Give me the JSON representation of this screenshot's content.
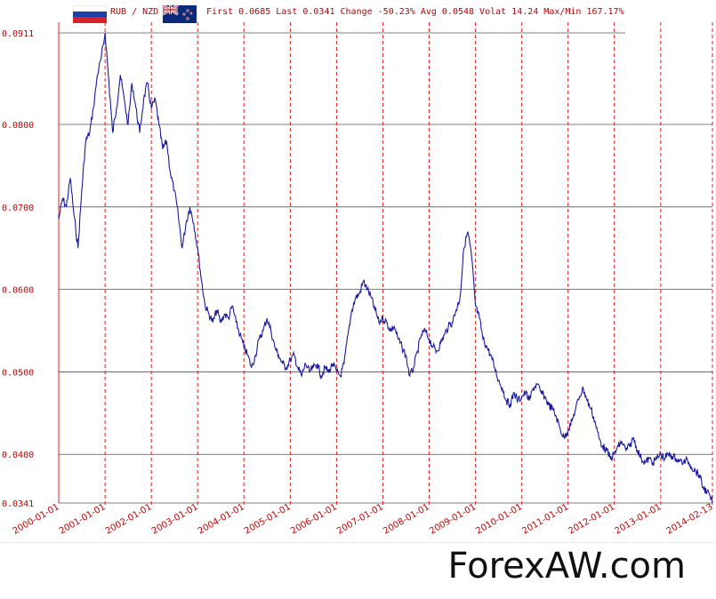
{
  "header": {
    "pair": "RUB / NZD",
    "stats": "First 0.0685 Last 0.0341 Change -50.23% Avg 0.0548 Volat 14.24 Max/Min 167.17%"
  },
  "flags": {
    "left": "russia-flag",
    "right": "new-zealand-flag"
  },
  "watermark": "ForexAW.com",
  "colors": {
    "line": "#1a1aa0",
    "grid_dashed": "#e02020",
    "grid_solid": "#555555",
    "axis_text": "#c00000"
  },
  "chart_data": {
    "type": "line",
    "title": "RUB / NZD",
    "ylim": [
      0.0341,
      0.0911
    ],
    "y_ticks": [
      "0.0911",
      "0.0800",
      "0.0700",
      "0.0600",
      "0.0500",
      "0.0400",
      "0.0341"
    ],
    "x_ticks": [
      "2000-01-01",
      "2001-01-01",
      "2002-01-01",
      "2003-01-01",
      "2004-01-01",
      "2005-01-01",
      "2006-01-01",
      "2007-01-01",
      "2008-01-01",
      "2009-01-01",
      "2010-01-01",
      "2011-01-01",
      "2012-01-01",
      "2013-01-01",
      "2014-02-13"
    ],
    "series": [
      {
        "values": [
          [
            "2000-01-01",
            0.0685
          ],
          [
            "2000-02-01",
            0.071
          ],
          [
            "2000-03-01",
            0.07
          ],
          [
            "2000-04-01",
            0.0735
          ],
          [
            "2000-05-01",
            0.069
          ],
          [
            "2000-06-01",
            0.065
          ],
          [
            "2000-07-01",
            0.072
          ],
          [
            "2000-08-01",
            0.078
          ],
          [
            "2000-09-01",
            0.079
          ],
          [
            "2000-10-01",
            0.082
          ],
          [
            "2000-11-01",
            0.086
          ],
          [
            "2000-12-01",
            0.088
          ],
          [
            "2001-01-01",
            0.0911
          ],
          [
            "2001-02-01",
            0.085
          ],
          [
            "2001-03-01",
            0.079
          ],
          [
            "2001-04-01",
            0.082
          ],
          [
            "2001-05-01",
            0.086
          ],
          [
            "2001-06-01",
            0.083
          ],
          [
            "2001-07-01",
            0.08
          ],
          [
            "2001-08-01",
            0.085
          ],
          [
            "2001-09-01",
            0.082
          ],
          [
            "2001-10-01",
            0.079
          ],
          [
            "2001-11-01",
            0.083
          ],
          [
            "2001-12-01",
            0.085
          ],
          [
            "2002-01-01",
            0.082
          ],
          [
            "2002-02-01",
            0.083
          ],
          [
            "2002-03-01",
            0.08
          ],
          [
            "2002-04-01",
            0.077
          ],
          [
            "2002-05-01",
            0.078
          ],
          [
            "2002-06-01",
            0.074
          ],
          [
            "2002-07-01",
            0.072
          ],
          [
            "2002-08-01",
            0.069
          ],
          [
            "2002-09-01",
            0.065
          ],
          [
            "2002-10-01",
            0.068
          ],
          [
            "2002-11-01",
            0.07
          ],
          [
            "2002-12-01",
            0.068
          ],
          [
            "2003-01-01",
            0.065
          ],
          [
            "2003-02-01",
            0.061
          ],
          [
            "2003-03-01",
            0.058
          ],
          [
            "2003-04-01",
            0.057
          ],
          [
            "2003-05-01",
            0.056
          ],
          [
            "2003-06-01",
            0.0575
          ],
          [
            "2003-07-01",
            0.056
          ],
          [
            "2003-08-01",
            0.057
          ],
          [
            "2003-09-01",
            0.0565
          ],
          [
            "2003-10-01",
            0.058
          ],
          [
            "2003-11-01",
            0.056
          ],
          [
            "2003-12-01",
            0.0545
          ],
          [
            "2004-01-01",
            0.053
          ],
          [
            "2004-02-01",
            0.052
          ],
          [
            "2004-03-01",
            0.0505
          ],
          [
            "2004-04-01",
            0.052
          ],
          [
            "2004-05-01",
            0.054
          ],
          [
            "2004-06-01",
            0.055
          ],
          [
            "2004-07-01",
            0.0565
          ],
          [
            "2004-08-01",
            0.055
          ],
          [
            "2004-09-01",
            0.053
          ],
          [
            "2004-10-01",
            0.052
          ],
          [
            "2004-11-01",
            0.051
          ],
          [
            "2004-12-01",
            0.0505
          ],
          [
            "2005-01-01",
            0.0515
          ],
          [
            "2005-02-01",
            0.052
          ],
          [
            "2005-03-01",
            0.0505
          ],
          [
            "2005-04-01",
            0.0495
          ],
          [
            "2005-05-01",
            0.051
          ],
          [
            "2005-06-01",
            0.05
          ],
          [
            "2005-07-01",
            0.0505
          ],
          [
            "2005-08-01",
            0.051
          ],
          [
            "2005-09-01",
            0.0495
          ],
          [
            "2005-10-01",
            0.0505
          ],
          [
            "2005-11-01",
            0.05
          ],
          [
            "2005-12-01",
            0.051
          ],
          [
            "2006-01-01",
            0.05
          ],
          [
            "2006-02-01",
            0.0495
          ],
          [
            "2006-03-01",
            0.051
          ],
          [
            "2006-04-01",
            0.0545
          ],
          [
            "2006-05-01",
            0.0575
          ],
          [
            "2006-06-01",
            0.059
          ],
          [
            "2006-07-01",
            0.0595
          ],
          [
            "2006-08-01",
            0.061
          ],
          [
            "2006-09-01",
            0.06
          ],
          [
            "2006-10-01",
            0.059
          ],
          [
            "2006-11-01",
            0.0575
          ],
          [
            "2006-12-01",
            0.056
          ],
          [
            "2007-01-01",
            0.0565
          ],
          [
            "2007-02-01",
            0.056
          ],
          [
            "2007-03-01",
            0.055
          ],
          [
            "2007-04-01",
            0.0555
          ],
          [
            "2007-05-01",
            0.054
          ],
          [
            "2007-06-01",
            0.053
          ],
          [
            "2007-07-01",
            0.052
          ],
          [
            "2007-08-01",
            0.0495
          ],
          [
            "2007-09-01",
            0.0505
          ],
          [
            "2007-10-01",
            0.0525
          ],
          [
            "2007-11-01",
            0.0545
          ],
          [
            "2007-12-01",
            0.055
          ],
          [
            "2008-01-01",
            0.054
          ],
          [
            "2008-02-01",
            0.053
          ],
          [
            "2008-03-01",
            0.0525
          ],
          [
            "2008-04-01",
            0.0535
          ],
          [
            "2008-05-01",
            0.0545
          ],
          [
            "2008-06-01",
            0.0555
          ],
          [
            "2008-07-01",
            0.056
          ],
          [
            "2008-08-01",
            0.0575
          ],
          [
            "2008-09-01",
            0.059
          ],
          [
            "2008-10-01",
            0.065
          ],
          [
            "2008-11-01",
            0.067
          ],
          [
            "2008-12-01",
            0.064
          ],
          [
            "2009-01-01",
            0.058
          ],
          [
            "2009-02-01",
            0.0565
          ],
          [
            "2009-03-01",
            0.054
          ],
          [
            "2009-04-01",
            0.053
          ],
          [
            "2009-05-01",
            0.052
          ],
          [
            "2009-06-01",
            0.0505
          ],
          [
            "2009-07-01",
            0.049
          ],
          [
            "2009-08-01",
            0.048
          ],
          [
            "2009-09-01",
            0.0465
          ],
          [
            "2009-10-01",
            0.046
          ],
          [
            "2009-11-01",
            0.0475
          ],
          [
            "2009-12-01",
            0.0465
          ],
          [
            "2010-01-01",
            0.047
          ],
          [
            "2010-02-01",
            0.0475
          ],
          [
            "2010-03-01",
            0.0465
          ],
          [
            "2010-04-01",
            0.048
          ],
          [
            "2010-05-01",
            0.0485
          ],
          [
            "2010-06-01",
            0.0475
          ],
          [
            "2010-07-01",
            0.047
          ],
          [
            "2010-08-01",
            0.046
          ],
          [
            "2010-09-01",
            0.0455
          ],
          [
            "2010-10-01",
            0.0445
          ],
          [
            "2010-11-01",
            0.043
          ],
          [
            "2010-12-01",
            0.042
          ],
          [
            "2011-01-01",
            0.043
          ],
          [
            "2011-02-01",
            0.044
          ],
          [
            "2011-03-01",
            0.0455
          ],
          [
            "2011-04-01",
            0.047
          ],
          [
            "2011-05-01",
            0.048
          ],
          [
            "2011-06-01",
            0.0465
          ],
          [
            "2011-07-01",
            0.0455
          ],
          [
            "2011-08-01",
            0.044
          ],
          [
            "2011-09-01",
            0.042
          ],
          [
            "2011-10-01",
            0.041
          ],
          [
            "2011-11-01",
            0.0405
          ],
          [
            "2011-12-01",
            0.0395
          ],
          [
            "2012-01-01",
            0.04
          ],
          [
            "2012-02-01",
            0.041
          ],
          [
            "2012-03-01",
            0.0415
          ],
          [
            "2012-04-01",
            0.0405
          ],
          [
            "2012-05-01",
            0.041
          ],
          [
            "2012-06-01",
            0.042
          ],
          [
            "2012-07-01",
            0.0405
          ],
          [
            "2012-08-01",
            0.0395
          ],
          [
            "2012-09-01",
            0.039
          ],
          [
            "2012-10-01",
            0.0395
          ],
          [
            "2012-11-01",
            0.039
          ],
          [
            "2012-12-01",
            0.0395
          ],
          [
            "2013-01-01",
            0.04
          ],
          [
            "2013-02-01",
            0.0395
          ],
          [
            "2013-03-01",
            0.04
          ],
          [
            "2013-04-01",
            0.0398
          ],
          [
            "2013-05-01",
            0.0395
          ],
          [
            "2013-06-01",
            0.0392
          ],
          [
            "2013-07-01",
            0.039
          ],
          [
            "2013-08-01",
            0.0393
          ],
          [
            "2013-09-01",
            0.0385
          ],
          [
            "2013-10-01",
            0.038
          ],
          [
            "2013-11-01",
            0.0375
          ],
          [
            "2013-12-01",
            0.036
          ],
          [
            "2014-01-01",
            0.0355
          ],
          [
            "2014-02-13",
            0.0341
          ]
        ]
      }
    ]
  }
}
